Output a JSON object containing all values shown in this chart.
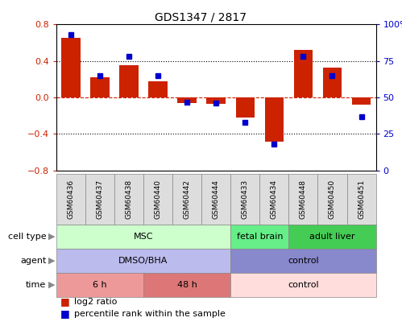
{
  "title": "GDS1347 / 2817",
  "samples": [
    "GSM60436",
    "GSM60437",
    "GSM60438",
    "GSM60440",
    "GSM60442",
    "GSM60444",
    "GSM60433",
    "GSM60434",
    "GSM60448",
    "GSM60450",
    "GSM60451"
  ],
  "log2_ratio": [
    0.65,
    0.22,
    0.35,
    0.18,
    -0.06,
    -0.07,
    -0.22,
    -0.48,
    0.52,
    0.33,
    -0.08
  ],
  "percentile_rank": [
    93,
    65,
    78,
    65,
    47,
    46,
    33,
    18,
    78,
    65,
    37
  ],
  "ylim": [
    -0.8,
    0.8
  ],
  "yticks_left": [
    -0.8,
    -0.4,
    0.0,
    0.4,
    0.8
  ],
  "yticks_right": [
    0,
    25,
    50,
    75,
    100
  ],
  "bar_color": "#cc2200",
  "dot_color": "#0000cc",
  "dashed_zero_color": "#cc2200",
  "cell_type_groups": [
    {
      "label": "MSC",
      "start": 0,
      "end": 6,
      "color": "#ccffcc",
      "border": "#888888"
    },
    {
      "label": "fetal brain",
      "start": 6,
      "end": 8,
      "color": "#66ee88",
      "border": "#888888"
    },
    {
      "label": "adult liver",
      "start": 8,
      "end": 11,
      "color": "#44cc55",
      "border": "#888888"
    }
  ],
  "agent_groups": [
    {
      "label": "DMSO/BHA",
      "start": 0,
      "end": 6,
      "color": "#bbbbee",
      "border": "#888888"
    },
    {
      "label": "control",
      "start": 6,
      "end": 11,
      "color": "#8888cc",
      "border": "#888888"
    }
  ],
  "time_groups": [
    {
      "label": "6 h",
      "start": 0,
      "end": 3,
      "color": "#ee9999",
      "border": "#888888"
    },
    {
      "label": "48 h",
      "start": 3,
      "end": 6,
      "color": "#dd7777",
      "border": "#888888"
    },
    {
      "label": "control",
      "start": 6,
      "end": 11,
      "color": "#ffdddd",
      "border": "#888888"
    }
  ],
  "legend_items": [
    {
      "label": "log2 ratio",
      "color": "#cc2200"
    },
    {
      "label": "percentile rank within the sample",
      "color": "#0000cc"
    }
  ]
}
